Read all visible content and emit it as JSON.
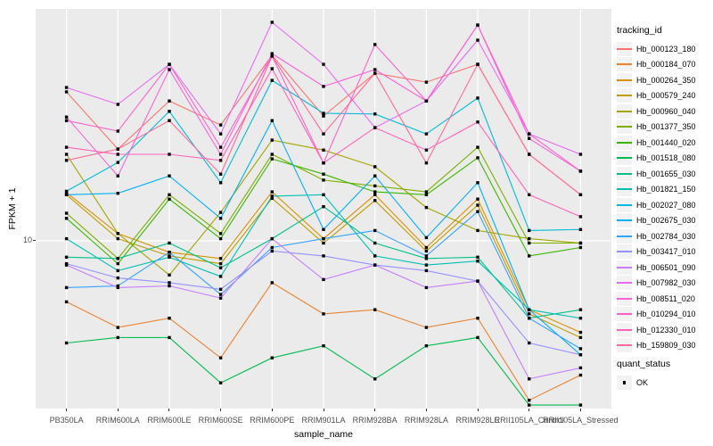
{
  "figure": {
    "y_axis_title": "FPKM + 1",
    "x_axis_title": "sample_name",
    "y_tick_label": "10",
    "legend_title": "tracking_id",
    "quant_legend_title": "quant_status",
    "quant_legend_item": "OK"
  },
  "chart_data": {
    "type": "line",
    "title": "",
    "xlabel": "sample_name",
    "ylabel": "FPKM + 1",
    "y_scale": "log10",
    "y_ticks": [
      10
    ],
    "ylim_approx": [
      2,
      80
    ],
    "grid": "white major gridlines on gray panel",
    "panel_bg": "#EBEBEB",
    "grid_color": "#FFFFFF",
    "tick_text_color": "#4D4D4D",
    "point_marker": {
      "shape": "square",
      "color": "#000000",
      "meaning": "quant_status OK"
    },
    "legend_position": "right",
    "legend_title": "tracking_id",
    "quant_status": {
      "title": "quant_status",
      "items": [
        {
          "label": "OK",
          "marker": "black-square"
        }
      ]
    },
    "categories": [
      "PB350LA",
      "RRIM600LA",
      "RRIM600LE",
      "RRIM600SE",
      "RRIM600PE",
      "RRIM901LA",
      "RRIM928BA",
      "RRIM928LA",
      "RRIM928LE",
      "RRII105LA_Control",
      "RRII105LA_Stressed"
    ],
    "series": [
      {
        "name": "Hb_000123_180",
        "color": "#F8766D",
        "values": [
          39.5,
          23.3,
          36.3,
          29.1,
          55.3,
          31.6,
          46.9,
          43.2,
          50.9,
          22.2,
          15.3
        ]
      },
      {
        "name": "Hb_000184_070",
        "color": "#EA8331",
        "values": [
          5.7,
          4.5,
          4.9,
          3.4,
          6.8,
          5.1,
          5.3,
          4.5,
          4.9,
          2.3,
          2.9
        ]
      },
      {
        "name": "Hb_000264_350",
        "color": "#D89000",
        "values": [
          15.6,
          10.7,
          9.0,
          8.5,
          15.7,
          10.2,
          15.3,
          9.4,
          14.7,
          5.3,
          4.3
        ]
      },
      {
        "name": "Hb_000579_240",
        "color": "#C09B00",
        "values": [
          15.3,
          10.2,
          8.7,
          8.1,
          14.8,
          9.8,
          14.5,
          9.1,
          13.9,
          5.1,
          4.1
        ]
      },
      {
        "name": "Hb_000960_040",
        "color": "#A3A500",
        "values": [
          22.2,
          10.7,
          7.3,
          13.0,
          25.3,
          23.1,
          19.8,
          13.6,
          11.0,
          10.2,
          9.8
        ]
      },
      {
        "name": "Hb_001377_350",
        "color": "#7CAE00",
        "values": [
          12.9,
          8.5,
          15.3,
          10.7,
          22.2,
          17.5,
          16.6,
          15.7,
          23.7,
          9.8,
          9.8
        ]
      },
      {
        "name": "Hb_001440_020",
        "color": "#39B600",
        "values": [
          12.3,
          8.1,
          14.7,
          10.2,
          21.3,
          18.5,
          15.7,
          15.3,
          21.5,
          8.7,
          9.4
        ]
      },
      {
        "name": "Hb_001518_080",
        "color": "#00BB4E",
        "values": [
          3.9,
          4.1,
          4.1,
          2.7,
          3.4,
          3.8,
          2.8,
          3.8,
          4.1,
          2.2,
          2.2
        ]
      },
      {
        "name": "Hb_001655_030",
        "color": "#00C087",
        "values": [
          8.6,
          8.5,
          9.8,
          7.8,
          10.2,
          13.7,
          9.8,
          8.5,
          8.6,
          4.9,
          5.3
        ]
      },
      {
        "name": "Hb_001821_150",
        "color": "#00C0B2",
        "values": [
          10.2,
          7.6,
          8.6,
          7.2,
          15.1,
          15.3,
          8.7,
          8.0,
          8.3,
          5.3,
          4.9
        ]
      },
      {
        "name": "Hb_002027_080",
        "color": "#00BCD8",
        "values": [
          15.8,
          20.6,
          33.0,
          17.1,
          43.9,
          32.4,
          32.2,
          26.8,
          37.3,
          11.0,
          11.1
        ]
      },
      {
        "name": "Hb_002675_030",
        "color": "#00B0F6",
        "values": [
          15.3,
          15.5,
          18.2,
          12.3,
          30.3,
          11.1,
          18.2,
          10.3,
          17.1,
          5.3,
          3.5
        ]
      },
      {
        "name": "Hb_002784_030",
        "color": "#35A2FF",
        "values": [
          6.5,
          6.6,
          9.0,
          6.1,
          9.4,
          10.2,
          11.0,
          8.7,
          13.1,
          4.9,
          3.7
        ]
      },
      {
        "name": "Hb_003417_010",
        "color": "#9590FF",
        "values": [
          8.1,
          7.1,
          6.8,
          6.4,
          9.1,
          8.7,
          8.0,
          7.6,
          6.9,
          3.9,
          3.5
        ]
      },
      {
        "name": "Hb_006501_090",
        "color": "#C77CFF",
        "values": [
          8.0,
          6.5,
          6.6,
          5.9,
          10.2,
          7.0,
          8.0,
          6.5,
          6.9,
          2.8,
          3.1
        ]
      },
      {
        "name": "Hb_007982_030",
        "color": "#E76BF3",
        "values": [
          41.1,
          35.2,
          50.9,
          26.8,
          75.0,
          50.9,
          28.4,
          36.3,
          63.6,
          26.8,
          22.2
        ]
      },
      {
        "name": "Hb_008511_020",
        "color": "#FA62DB",
        "values": [
          31.3,
          18.2,
          48.5,
          22.2,
          56.2,
          41.5,
          48.5,
          36.3,
          73.1,
          25.7,
          19.0
        ]
      },
      {
        "name": "Hb_010294_010",
        "color": "#FF61CC",
        "values": [
          30.3,
          27.5,
          50.9,
          23.7,
          54.9,
          20.5,
          61.1,
          36.3,
          73.1,
          26.8,
          19.0
        ]
      },
      {
        "name": "Hb_012330_010",
        "color": "#FF62BC",
        "values": [
          23.7,
          22.2,
          22.2,
          21.0,
          48.9,
          20.5,
          28.4,
          23.1,
          29.9,
          15.3,
          12.5
        ]
      },
      {
        "name": "Hb_159809_030",
        "color": "#FF6A98",
        "values": [
          21.0,
          23.3,
          30.3,
          18.5,
          54.9,
          26.8,
          46.9,
          20.5,
          50.9,
          22.2,
          15.3
        ]
      }
    ]
  }
}
